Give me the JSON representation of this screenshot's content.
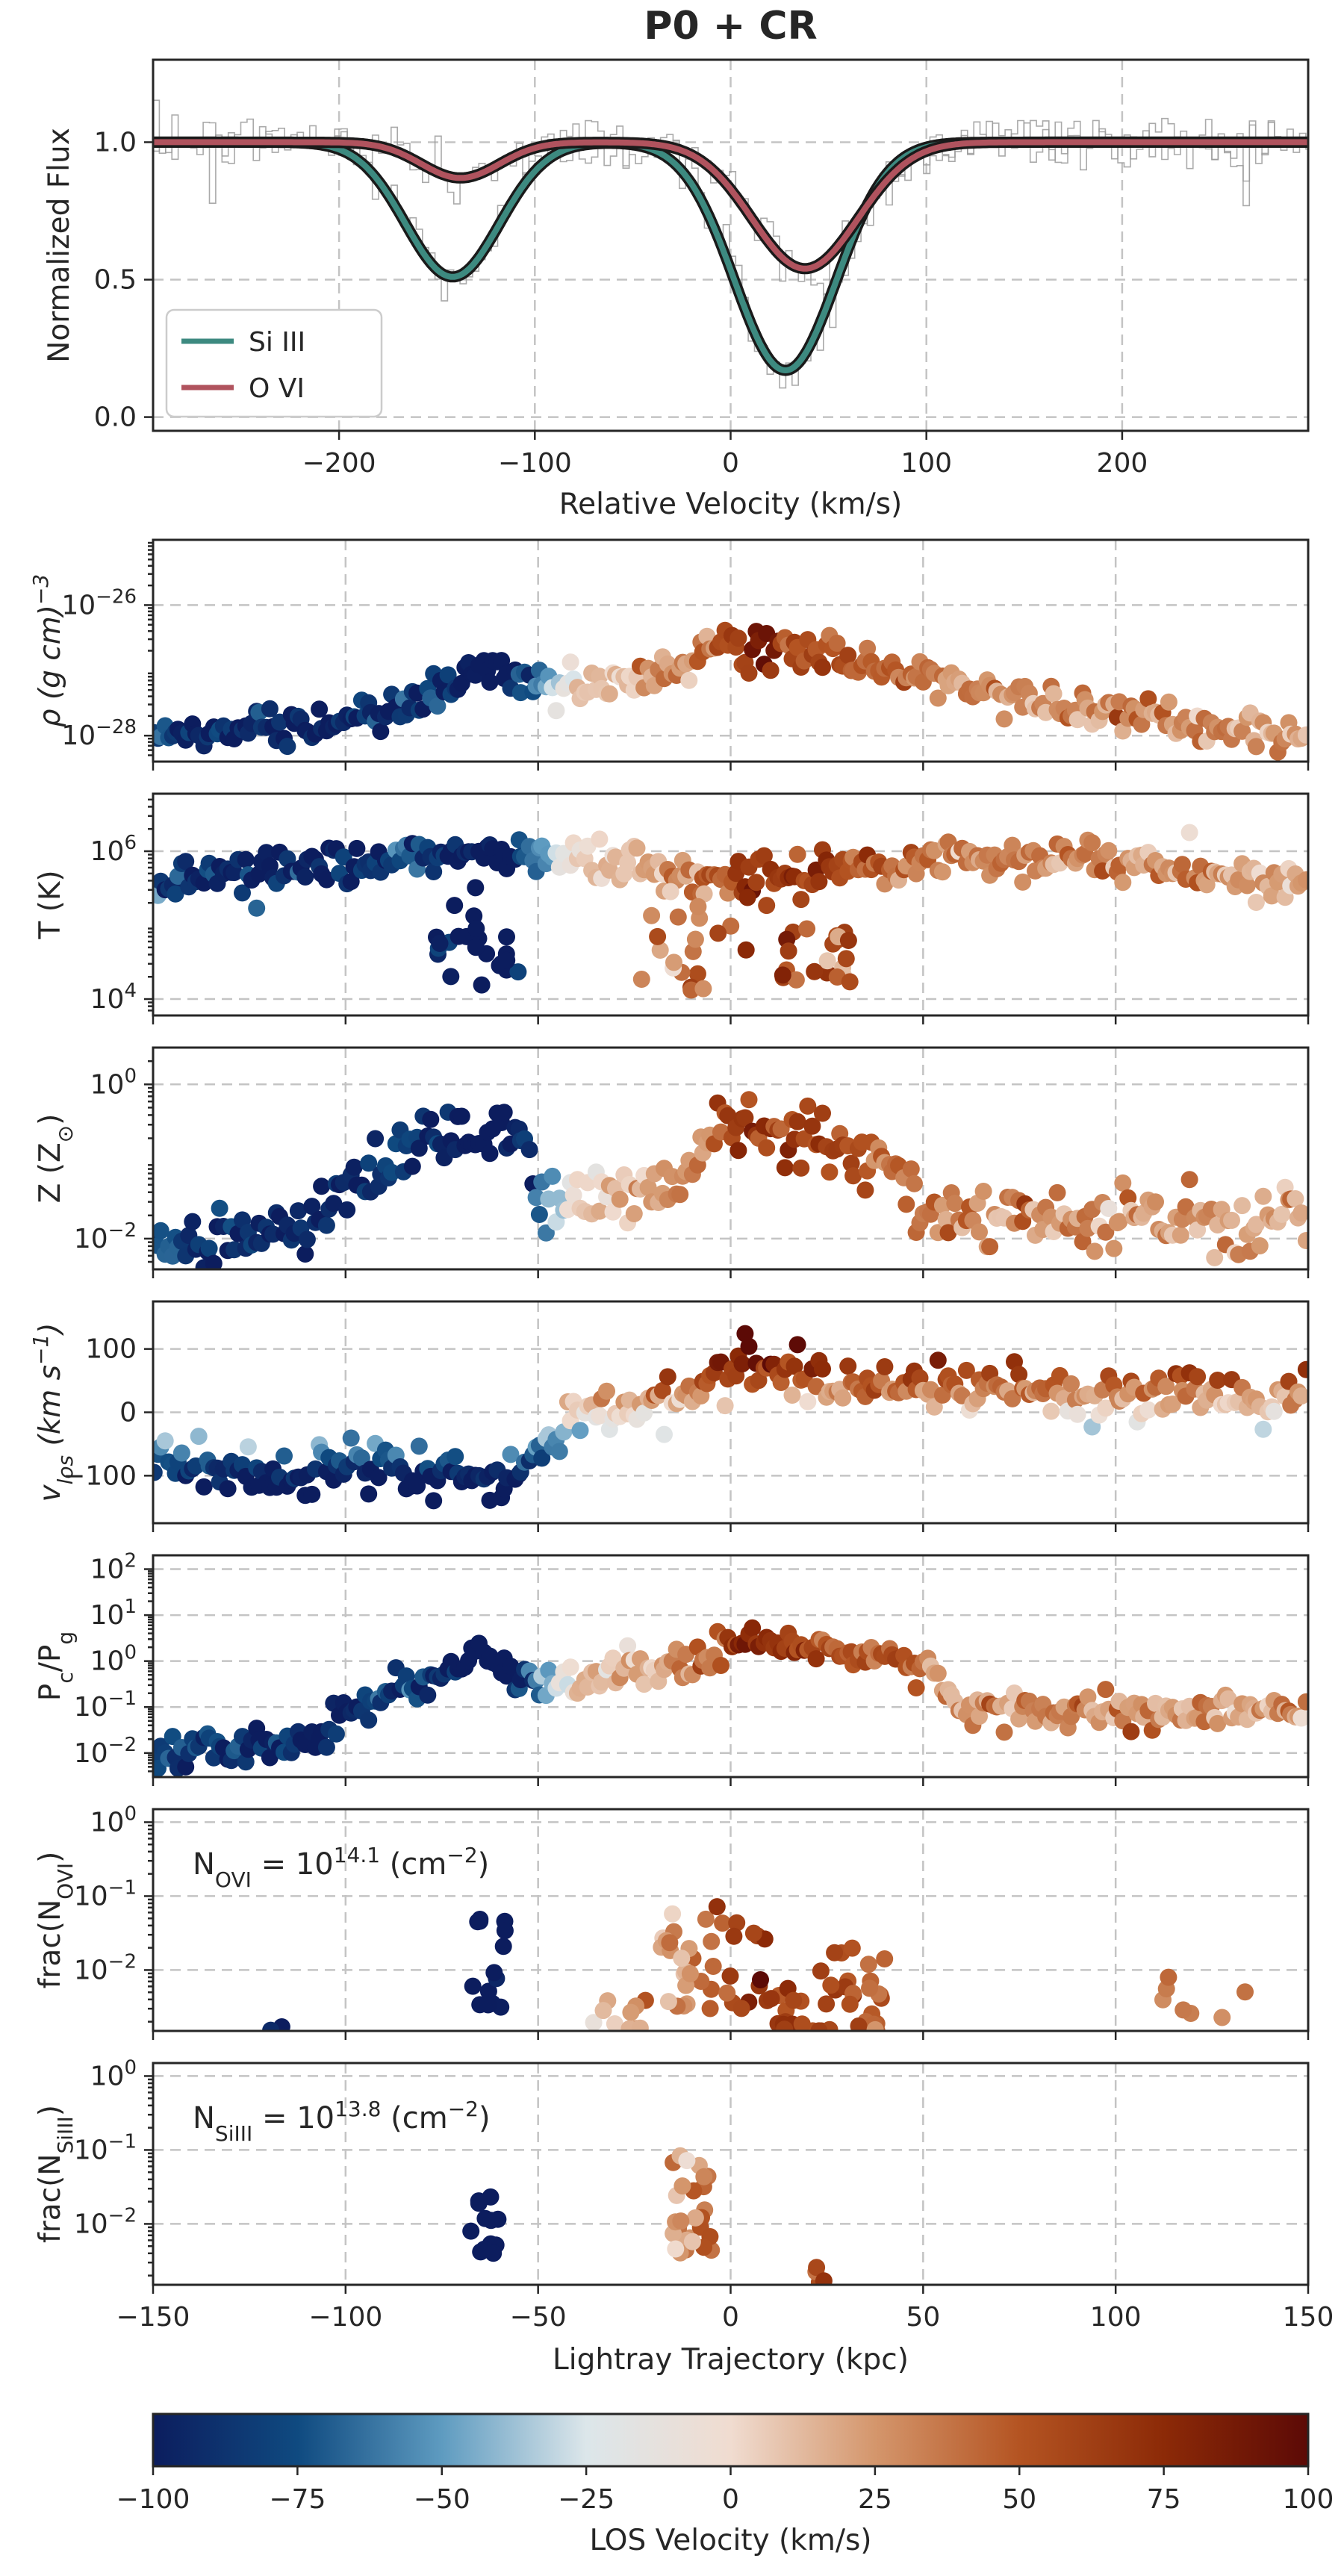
{
  "chart_data": [
    {
      "id": "spectrum",
      "type": "line",
      "title": "P0 + CR",
      "xlabel": "Relative Velocity (km/s)",
      "ylabel": "Normalized Flux",
      "xlim": [
        -295,
        295
      ],
      "ylim": [
        -0.05,
        1.3
      ],
      "xticks": [
        -200,
        -100,
        0,
        100,
        200
      ],
      "xtick_labels": [
        "−200",
        "−100",
        "0",
        "100",
        "200"
      ],
      "yticks": [
        0.0,
        0.5,
        1.0
      ],
      "ytick_labels": [
        "0.0",
        "0.5",
        "1.0"
      ],
      "grid": true,
      "legend_position": "lower-left",
      "series": [
        {
          "name": "Si III",
          "color": "#3d8a80",
          "components": [
            {
              "center": -142,
              "depth": 0.49,
              "sigma": 24
            },
            {
              "center": 28,
              "depth": 0.83,
              "sigma": 26
            }
          ]
        },
        {
          "name": "O VI",
          "color": "#b0535e",
          "components": [
            {
              "center": -138,
              "depth": 0.13,
              "sigma": 20
            },
            {
              "center": 38,
              "depth": 0.46,
              "sigma": 27
            }
          ]
        }
      ],
      "data_color": "#9b9b9b"
    },
    {
      "id": "rho",
      "type": "scatter",
      "scale": "log",
      "ylabel_main": "ρ (g cm",
      "ylabel_sup": "−3",
      "ylabel_tail": ")",
      "ylim": [
        4e-29,
        1e-25
      ],
      "yticks": [
        1e-28,
        1e-26
      ],
      "ytick_labels": [
        {
          "base": "10",
          "exp": "−28"
        },
        {
          "base": "10",
          "exp": "−26"
        }
      ],
      "profile": [
        [
          -150,
          1e-28
        ],
        [
          -110,
          1.5e-28
        ],
        [
          -90,
          2.2e-28
        ],
        [
          -62,
          1.2e-27
        ],
        [
          -55,
          6e-28
        ],
        [
          -30,
          6e-28
        ],
        [
          -15,
          1e-27
        ],
        [
          -5,
          2.5e-27
        ],
        [
          5,
          2e-27
        ],
        [
          25,
          1.8e-27
        ],
        [
          50,
          7e-28
        ],
        [
          100,
          2.2e-28
        ],
        [
          150,
          9e-29
        ]
      ],
      "spread": 0.25
    },
    {
      "id": "T",
      "type": "scatter",
      "scale": "log",
      "ylabel_main": "T (K)",
      "ylim": [
        6000.0,
        6000000.0
      ],
      "yticks": [
        10000.0,
        1000000.0
      ],
      "ytick_labels": [
        {
          "base": "10",
          "exp": "4"
        },
        {
          "base": "10",
          "exp": "6"
        }
      ],
      "profile": [
        [
          -150,
          400000.0
        ],
        [
          -120,
          600000.0
        ],
        [
          -90,
          700000.0
        ],
        [
          -55,
          900000.0
        ],
        [
          -30,
          700000.0
        ],
        [
          -10,
          500000.0
        ],
        [
          10,
          400000.0
        ],
        [
          40,
          600000.0
        ],
        [
          60,
          800000.0
        ],
        [
          80,
          900000.0
        ],
        [
          120,
          600000.0
        ],
        [
          150,
          300000.0
        ]
      ],
      "spread": 0.25,
      "cold_clumps": [
        [
          -55,
          -80,
          15000.0,
          200000.0
        ],
        [
          -24,
          5,
          12000.0,
          300000.0
        ],
        [
          13,
          32,
          15000.0,
          100000.0
        ]
      ]
    },
    {
      "id": "Z",
      "type": "scatter",
      "scale": "log",
      "ylabel_main": "Z (Z",
      "ylabel_sub": "⊙",
      "ylabel_tail": ")",
      "ylim": [
        0.004,
        3
      ],
      "yticks": [
        0.01,
        1
      ],
      "ytick_labels": [
        {
          "base": "10",
          "exp": "−2"
        },
        {
          "base": "10",
          "exp": "0"
        }
      ],
      "profile": [
        [
          -150,
          0.008
        ],
        [
          -110,
          0.013
        ],
        [
          -100,
          0.04
        ],
        [
          -85,
          0.15
        ],
        [
          -75,
          0.25
        ],
        [
          -55,
          0.2
        ],
        [
          -50,
          0.03
        ],
        [
          -20,
          0.04
        ],
        [
          -10,
          0.1
        ],
        [
          -3,
          0.4
        ],
        [
          20,
          0.2
        ],
        [
          40,
          0.1
        ],
        [
          45,
          0.08
        ],
        [
          50,
          0.02
        ],
        [
          150,
          0.018
        ]
      ],
      "spread": 0.35
    },
    {
      "id": "vlos",
      "type": "scatter",
      "scale": "linear",
      "ylabel_main": "v",
      "ylabel_sub": "los",
      "ylabel_tail": " (km s",
      "ylabel_sup": "−1",
      "ylabel_end": ")",
      "ylim": [
        -175,
        175
      ],
      "yticks": [
        -100,
        0,
        100
      ],
      "ytick_labels": [
        {
          "base": "−100"
        },
        {
          "base": "0"
        },
        {
          "base": "100"
        }
      ],
      "profile": [
        [
          -150,
          -80
        ],
        [
          -110,
          -100
        ],
        [
          -85,
          -80
        ],
        [
          -60,
          -120
        ],
        [
          -55,
          -90
        ],
        [
          -40,
          0
        ],
        [
          -10,
          30
        ],
        [
          5,
          75
        ],
        [
          25,
          55
        ],
        [
          60,
          30
        ],
        [
          100,
          30
        ],
        [
          150,
          20
        ]
      ],
      "spread": 20
    },
    {
      "id": "pc",
      "type": "scatter",
      "scale": "log",
      "ylabel_main": "P",
      "ylabel_sub": "c",
      "ylabel_tail": "/P",
      "ylabel_sub2": "g",
      "ylim": [
        0.003,
        200
      ],
      "yticks": [
        0.01,
        0.1,
        1,
        10,
        100
      ],
      "ytick_labels": [
        {
          "base": "10",
          "exp": "−2"
        },
        {
          "base": "10",
          "exp": "−1"
        },
        {
          "base": "10",
          "exp": "0"
        },
        {
          "base": "10",
          "exp": "1"
        },
        {
          "base": "10",
          "exp": "2"
        }
      ],
      "profile": [
        [
          -150,
          0.01
        ],
        [
          -110,
          0.02
        ],
        [
          -95,
          0.1
        ],
        [
          -80,
          0.5
        ],
        [
          -62,
          1.5
        ],
        [
          -55,
          0.3
        ],
        [
          -40,
          0.4
        ],
        [
          -10,
          1
        ],
        [
          0,
          3
        ],
        [
          20,
          2
        ],
        [
          50,
          0.8
        ],
        [
          60,
          0.1
        ],
        [
          100,
          0.07
        ],
        [
          150,
          0.1
        ]
      ],
      "spread": 0.35
    },
    {
      "id": "fracOVI",
      "type": "scatter",
      "scale": "log",
      "ylabel_main": "frac(N",
      "ylabel_sub": "OVI",
      "ylabel_tail": ")",
      "ylim": [
        0.0015,
        1.5
      ],
      "yticks": [
        0.01,
        0.1,
        1
      ],
      "ytick_labels": [
        {
          "base": "10",
          "exp": "−2"
        },
        {
          "base": "10",
          "exp": "−1"
        },
        {
          "base": "10",
          "exp": "0"
        }
      ],
      "annotation": {
        "lhs": "N",
        "lhs_sub": "OVI",
        "eq": " = 10",
        "exp": "14.1",
        "tail": " (cm",
        "tail_sup": "−2",
        "end": ")"
      }
    },
    {
      "id": "fracSiIII",
      "type": "scatter",
      "scale": "log",
      "ylabel_main": "frac(N",
      "ylabel_sub": "SiIII",
      "ylabel_tail": ")",
      "ylim": [
        0.0015,
        1.5
      ],
      "yticks": [
        0.01,
        0.1,
        1
      ],
      "ytick_labels": [
        {
          "base": "10",
          "exp": "−2"
        },
        {
          "base": "10",
          "exp": "−1"
        },
        {
          "base": "10",
          "exp": "0"
        }
      ],
      "annotation": {
        "lhs": "N",
        "lhs_sub": "SiIII",
        "eq": " = 10",
        "exp": "13.8",
        "tail": " (cm",
        "tail_sup": "−2",
        "end": ")"
      }
    }
  ],
  "shared_x": {
    "xlabel": "Lightray Trajectory (kpc)",
    "xlim": [
      -150,
      150
    ],
    "xticks": [
      -150,
      -100,
      -50,
      0,
      50,
      100,
      150
    ],
    "xtick_labels": [
      "−150",
      "−100",
      "−50",
      "0",
      "50",
      "100",
      "150"
    ]
  },
  "colorbar": {
    "label": "LOS Velocity (km/s)",
    "range": [
      -100,
      100
    ],
    "ticks": [
      -100,
      -75,
      -50,
      -25,
      0,
      25,
      50,
      75,
      100
    ],
    "tick_labels": [
      "−100",
      "−75",
      "−50",
      "−25",
      "0",
      "25",
      "50",
      "75",
      "100"
    ],
    "colors": [
      "#0c1d5e",
      "#0f4a80",
      "#5e9bc0",
      "#dce6ea",
      "#f0dcd0",
      "#d4966c",
      "#b45422",
      "#8c2a07",
      "#5c0a06"
    ]
  }
}
